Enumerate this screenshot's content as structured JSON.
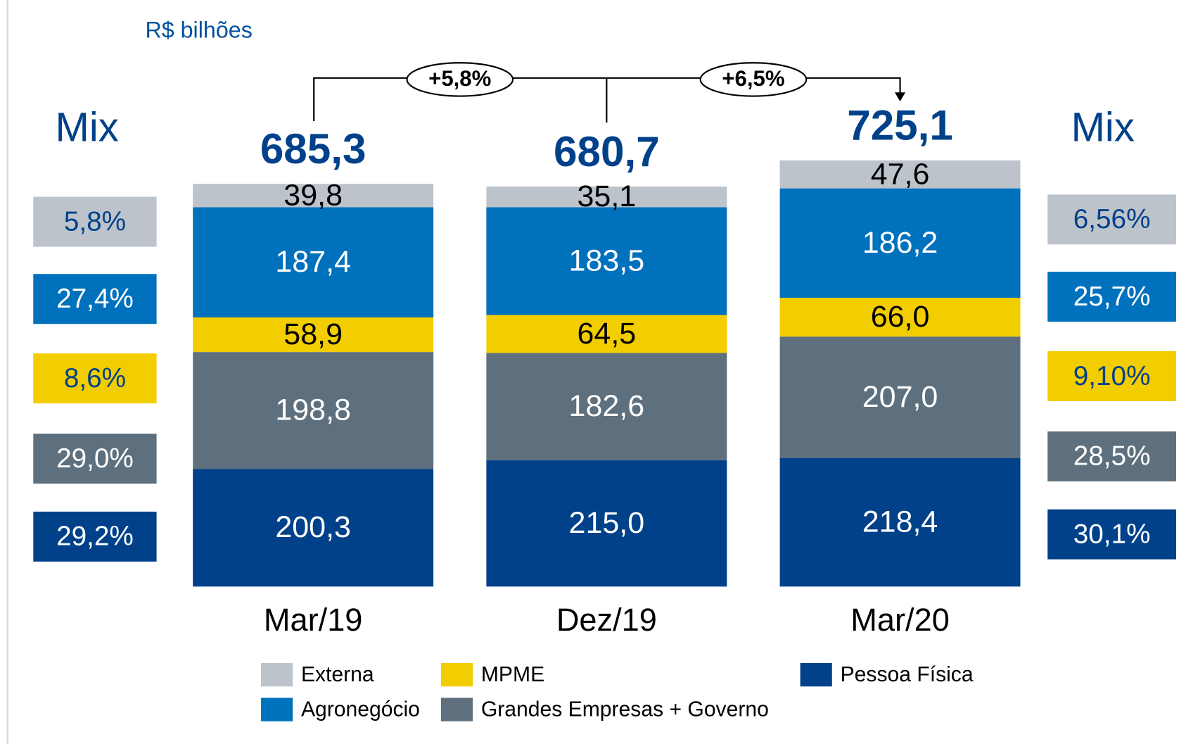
{
  "chart_data": {
    "type": "stacked_bar",
    "unit_label": "R$ bilhões",
    "categories": [
      "Mar/19",
      "Dez/19",
      "Mar/20"
    ],
    "totals": [
      685.3,
      680.7,
      725.1
    ],
    "total_labels": [
      "685,3",
      "680,7",
      "725,1"
    ],
    "annotations": [
      "+5,8%",
      "+6,5%"
    ],
    "series": [
      {
        "name": "Pessoa Física",
        "color": "#00418a",
        "values": [
          200.3,
          215.0,
          218.4
        ],
        "value_labels": [
          "200,3",
          "215,0",
          "218,4"
        ]
      },
      {
        "name": "Grandes Empresas + Governo",
        "color": "#5e707e",
        "values": [
          198.8,
          182.6,
          207.0
        ],
        "value_labels": [
          "198,8",
          "182,6",
          "207,0"
        ]
      },
      {
        "name": "MPME",
        "color": "#f2cd00",
        "values": [
          58.9,
          64.5,
          66.0
        ],
        "value_labels": [
          "58,9",
          "64,5",
          "66,0"
        ]
      },
      {
        "name": "Agronegócio",
        "color": "#0071bc",
        "values": [
          187.4,
          183.5,
          186.2
        ],
        "value_labels": [
          "187,4",
          "183,5",
          "186,2"
        ]
      },
      {
        "name": "Externa",
        "color": "#bcc3cb",
        "values": [
          39.8,
          35.1,
          47.6
        ],
        "value_labels": [
          "39,8",
          "35,1",
          "47,6"
        ]
      }
    ],
    "mix": [
      {
        "title": "Mix",
        "values": [
          29.2,
          29.0,
          8.6,
          27.4,
          5.8
        ],
        "value_labels": [
          "29,2%",
          "29,0%",
          "8,6%",
          "27,4%",
          "5,8%"
        ]
      },
      {
        "title": "Mix",
        "values": [
          30.1,
          28.5,
          9.1,
          25.7,
          6.56
        ],
        "value_labels": [
          "30,1%",
          "28,5%",
          "9,10%",
          "25,7%",
          "6,56%"
        ]
      }
    ]
  }
}
